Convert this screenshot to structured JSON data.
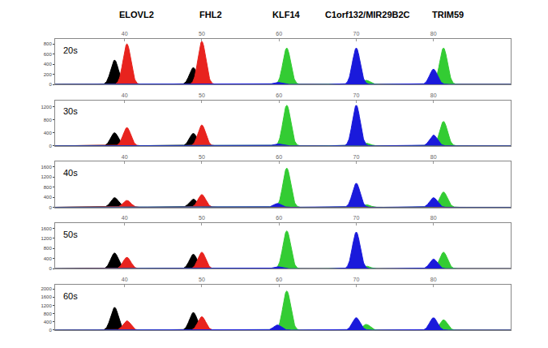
{
  "chart_data": [
    {
      "type": "area",
      "label": "20s",
      "xlim": [
        31,
        90
      ],
      "xticks": [
        40,
        50,
        60,
        70,
        80
      ],
      "ylim": [
        0,
        900
      ],
      "yticks": [
        0,
        200,
        400,
        600,
        800
      ],
      "grid": false,
      "annotations": [
        {
          "text": "ELOVL2",
          "x": 41.5
        },
        {
          "text": "FHL2",
          "x": 51.2
        },
        {
          "text": "KLF14",
          "x": 61
        },
        {
          "text": "C1orf132/MIR29B2C",
          "x": 71.5
        },
        {
          "text": "TRIM59",
          "x": 81.9
        }
      ],
      "series": [
        {
          "color": "#000000",
          "x": [
            38.7,
            48.9
          ],
          "values": [
            480,
            330
          ]
        },
        {
          "color": "#e8231e",
          "x": [
            40.3,
            50.0
          ],
          "values": [
            800,
            850
          ]
        },
        {
          "color": "#33cc33",
          "x": [
            61.0,
            71.3,
            81.3
          ],
          "values": [
            720,
            80,
            720
          ]
        },
        {
          "color": "#1a1adb",
          "x": [
            59.8,
            70.0,
            80.0
          ],
          "values": [
            40,
            720,
            300
          ]
        }
      ]
    },
    {
      "type": "area",
      "label": "30s",
      "xlim": [
        31,
        90
      ],
      "xticks": [
        40,
        50,
        60,
        70,
        80
      ],
      "ylim": [
        0,
        1400
      ],
      "yticks": [
        0,
        400,
        800,
        1200
      ],
      "grid": false,
      "series": [
        {
          "color": "#000000",
          "x": [
            38.7,
            48.9
          ],
          "values": [
            400,
            380
          ]
        },
        {
          "color": "#e8231e",
          "x": [
            40.3,
            50.0
          ],
          "values": [
            560,
            640
          ]
        },
        {
          "color": "#33cc33",
          "x": [
            61.0,
            71.3,
            81.3
          ],
          "values": [
            1250,
            80,
            750
          ]
        },
        {
          "color": "#1a1adb",
          "x": [
            59.8,
            70.0,
            80.0
          ],
          "values": [
            60,
            1250,
            330
          ]
        }
      ]
    },
    {
      "type": "area",
      "label": "40s",
      "xlim": [
        31,
        90
      ],
      "xticks": [
        40,
        50,
        60,
        70,
        80
      ],
      "ylim": [
        0,
        1800
      ],
      "yticks": [
        0,
        400,
        800,
        1200,
        1600
      ],
      "grid": false,
      "series": [
        {
          "color": "#000000",
          "x": [
            38.7,
            48.9
          ],
          "values": [
            380,
            320
          ]
        },
        {
          "color": "#e8231e",
          "x": [
            40.3,
            50.0
          ],
          "values": [
            270,
            500
          ]
        },
        {
          "color": "#33cc33",
          "x": [
            61.0,
            71.3,
            81.3
          ],
          "values": [
            1550,
            100,
            600
          ]
        },
        {
          "color": "#1a1adb",
          "x": [
            59.8,
            70.0,
            80.0
          ],
          "values": [
            150,
            950,
            380
          ]
        }
      ]
    },
    {
      "type": "area",
      "label": "50s",
      "xlim": [
        31,
        90
      ],
      "xticks": [
        40,
        50,
        60,
        70,
        80
      ],
      "ylim": [
        0,
        1800
      ],
      "yticks": [
        0,
        400,
        800,
        1200,
        1600
      ],
      "grid": false,
      "series": [
        {
          "color": "#000000",
          "x": [
            38.7,
            48.9
          ],
          "values": [
            620,
            570
          ]
        },
        {
          "color": "#e8231e",
          "x": [
            40.3,
            50.0
          ],
          "values": [
            450,
            650
          ]
        },
        {
          "color": "#33cc33",
          "x": [
            61.0,
            71.3,
            81.3
          ],
          "values": [
            1500,
            100,
            650
          ]
        },
        {
          "color": "#1a1adb",
          "x": [
            59.8,
            70.0,
            80.0
          ],
          "values": [
            80,
            1450,
            380
          ]
        }
      ]
    },
    {
      "type": "area",
      "label": "60s",
      "xlim": [
        31,
        90
      ],
      "xticks": [
        40,
        50,
        60,
        70,
        80
      ],
      "ylim": [
        0,
        2200
      ],
      "yticks": [
        0,
        400,
        800,
        1200,
        1600,
        2000
      ],
      "grid": false,
      "series": [
        {
          "color": "#000000",
          "x": [
            38.7,
            48.9
          ],
          "values": [
            1100,
            850
          ]
        },
        {
          "color": "#e8231e",
          "x": [
            40.3,
            50.0
          ],
          "values": [
            450,
            650
          ]
        },
        {
          "color": "#33cc33",
          "x": [
            61.0,
            71.3,
            81.3
          ],
          "values": [
            1900,
            280,
            500
          ]
        },
        {
          "color": "#1a1adb",
          "x": [
            59.8,
            70.0,
            80.0
          ],
          "values": [
            250,
            600,
            600
          ]
        }
      ]
    }
  ]
}
